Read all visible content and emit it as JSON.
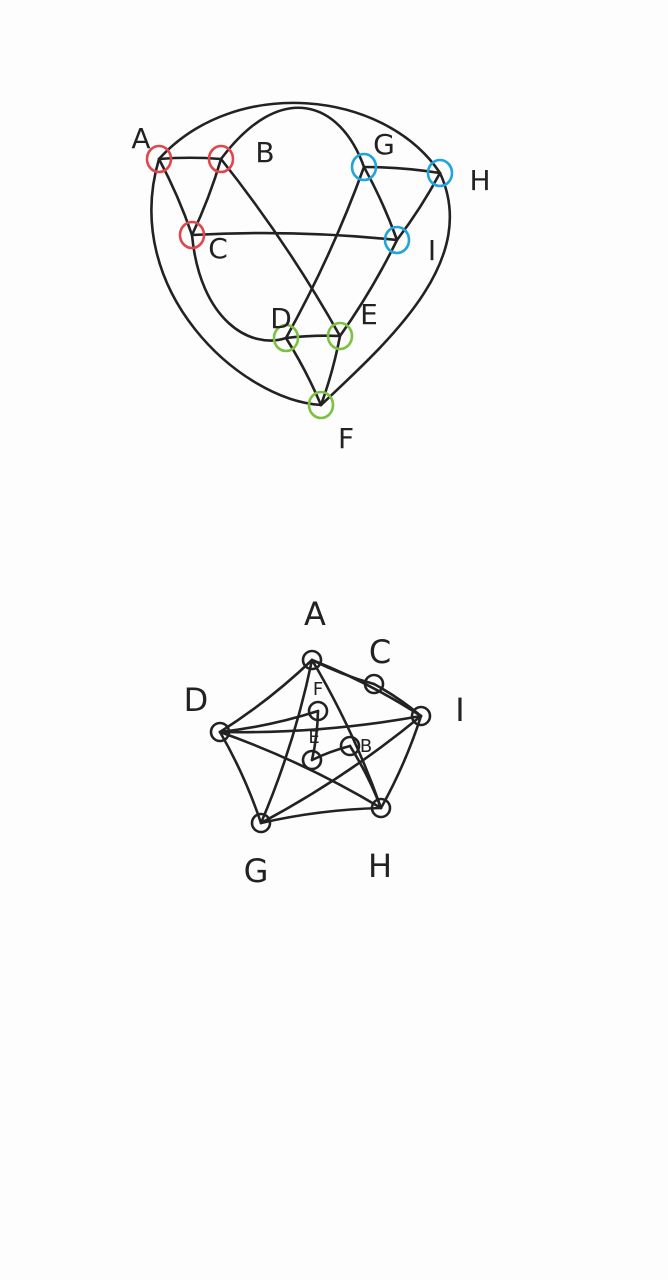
{
  "colors": {
    "ink": "#222222",
    "red": "#e0474c",
    "blue": "#1fa4dc",
    "green": "#7cc242",
    "background": "#fdfdfd"
  },
  "graph_top": {
    "nodes": [
      {
        "id": "A",
        "label": "A",
        "color": "red"
      },
      {
        "id": "B",
        "label": "B",
        "color": "red"
      },
      {
        "id": "C",
        "label": "C",
        "color": "red"
      },
      {
        "id": "G",
        "label": "G",
        "color": "blue"
      },
      {
        "id": "H",
        "label": "H",
        "color": "blue"
      },
      {
        "id": "I",
        "label": "I",
        "color": "blue"
      },
      {
        "id": "D",
        "label": "D",
        "color": "green"
      },
      {
        "id": "E",
        "label": "E",
        "color": "green"
      },
      {
        "id": "F",
        "label": "F",
        "color": "green"
      }
    ],
    "edges": [
      [
        "A",
        "B"
      ],
      [
        "A",
        "C"
      ],
      [
        "B",
        "C"
      ],
      [
        "G",
        "H"
      ],
      [
        "G",
        "I"
      ],
      [
        "H",
        "I"
      ],
      [
        "D",
        "E"
      ],
      [
        "D",
        "F"
      ],
      [
        "E",
        "F"
      ],
      [
        "A",
        "H"
      ],
      [
        "A",
        "F"
      ],
      [
        "B",
        "E"
      ],
      [
        "B",
        "G"
      ],
      [
        "C",
        "I"
      ],
      [
        "C",
        "D"
      ],
      [
        "G",
        "D"
      ],
      [
        "H",
        "F"
      ],
      [
        "I",
        "E"
      ]
    ]
  },
  "graph_bottom": {
    "nodes": [
      {
        "id": "A",
        "label": "A"
      },
      {
        "id": "C",
        "label": "C"
      },
      {
        "id": "I",
        "label": "I"
      },
      {
        "id": "H",
        "label": "H"
      },
      {
        "id": "G",
        "label": "G"
      },
      {
        "id": "D",
        "label": "D"
      },
      {
        "id": "F",
        "label": "F"
      },
      {
        "id": "E",
        "label": "E"
      },
      {
        "id": "B",
        "label": "B"
      }
    ],
    "edges": [
      [
        "A",
        "I"
      ],
      [
        "A",
        "D"
      ],
      [
        "A",
        "G"
      ],
      [
        "A",
        "H"
      ],
      [
        "I",
        "H"
      ],
      [
        "I",
        "D"
      ],
      [
        "I",
        "G"
      ],
      [
        "D",
        "G"
      ],
      [
        "D",
        "H"
      ],
      [
        "G",
        "H"
      ],
      [
        "C",
        "A"
      ],
      [
        "C",
        "I"
      ],
      [
        "F",
        "E"
      ],
      [
        "E",
        "B"
      ],
      [
        "B",
        "H"
      ],
      [
        "F",
        "D"
      ]
    ]
  }
}
